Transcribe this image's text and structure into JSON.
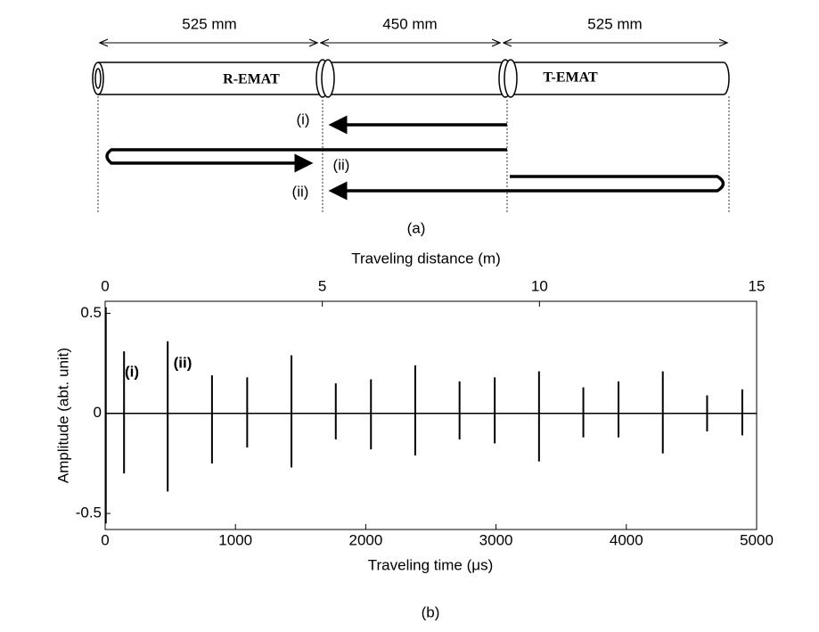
{
  "diagram": {
    "dimensions": [
      "525 mm",
      "450 mm",
      "525 mm"
    ],
    "transducers": [
      "R-EMAT",
      "T-EMAT"
    ],
    "paths": [
      "(i)",
      "(ii)",
      "(ii)"
    ],
    "caption": "(a)"
  },
  "chart_data": {
    "type": "spike",
    "caption": "(b)",
    "xlabel": "Traveling time (μs)",
    "ylabel": "Amplitude (abt. unit)",
    "x2label": "Traveling distance (m)",
    "annotations": [
      "(i)",
      "(ii)"
    ],
    "x": [
      5,
      145,
      480,
      820,
      1090,
      1430,
      1770,
      2040,
      2380,
      2720,
      2990,
      3330,
      3670,
      3940,
      4280,
      4620,
      4890
    ],
    "series": [
      {
        "color": "#000000",
        "values": [
          0.53,
          0.31,
          0.36,
          0.19,
          0.18,
          0.29,
          0.15,
          0.17,
          0.24,
          0.16,
          0.18,
          0.21,
          0.13,
          0.16,
          0.21,
          0.09,
          0.12
        ]
      },
      {
        "color": "#000000",
        "values": [
          -0.55,
          -0.3,
          -0.39,
          -0.25,
          -0.17,
          -0.27,
          -0.13,
          -0.18,
          -0.21,
          -0.13,
          -0.15,
          -0.24,
          -0.12,
          -0.12,
          -0.2,
          -0.09,
          -0.11
        ]
      }
    ],
    "xlim": [
      0,
      5000
    ],
    "xticks": [
      0,
      1000,
      2000,
      3000,
      4000,
      5000
    ],
    "x2lim": [
      0,
      15
    ],
    "x2ticks": [
      0,
      5,
      10,
      15
    ],
    "ylim": [
      -0.58,
      0.56
    ],
    "yticks": [
      -0.5,
      0,
      0.5
    ]
  }
}
